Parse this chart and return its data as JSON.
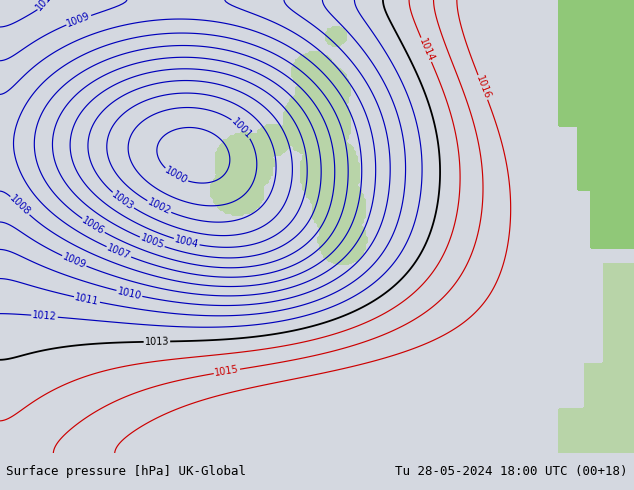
{
  "title_left": "Surface pressure [hPa] UK-Global",
  "title_right": "Tu 28-05-2024 18:00 UTC (00+18)",
  "bg_color": "#d4d8e0",
  "land_color": "#b8d4a8",
  "land_color_bright": "#90c878",
  "sea_color": "#d4d8e0",
  "blue_contour_color": "#0000bb",
  "black_contour_color": "#000000",
  "red_contour_color": "#cc0000",
  "label_fontsize": 7,
  "footer_fontsize": 9,
  "fig_width": 6.34,
  "fig_height": 4.9,
  "dpi": 100
}
